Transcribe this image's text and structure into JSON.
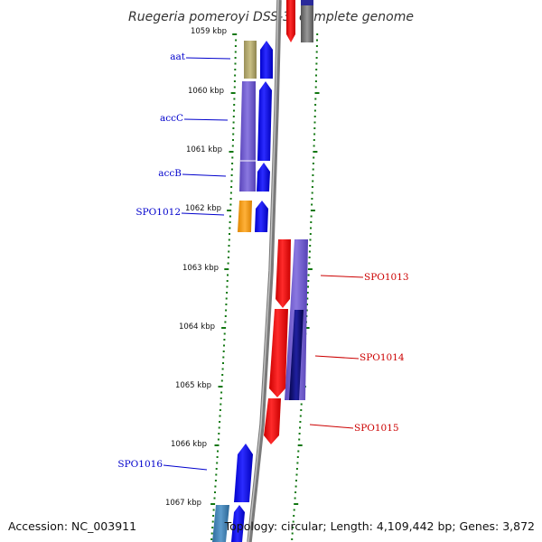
{
  "title": "Ruegeria pomeroyi DSS-3, complete genome",
  "accession": "Accession: NC_003911",
  "topology_text": "Topology: circular; Length: 4,109,442 bp; Genes: 3,872",
  "kbp_labels": [
    "1059 kbp",
    "1060 kbp",
    "1061 kbp",
    "1062 kbp",
    "1063 kbp",
    "1064 kbp",
    "1065 kbp",
    "1066 kbp",
    "1067 kbp"
  ],
  "left_genes": [
    {
      "name": "aat",
      "color": "#b5ab6e"
    },
    {
      "name": "accC",
      "color": "#6a55cc"
    },
    {
      "name": "accB",
      "color": "#6a55cc"
    },
    {
      "name": "SPO1012",
      "color": "#f59b0c"
    },
    {
      "name": "SPO1016",
      "color": "#3b7fb4"
    }
  ],
  "right_genes": [
    {
      "name": "SPO1013",
      "color": "#6a55cc"
    },
    {
      "name": "SPO1014",
      "color": "#0b0b7a"
    },
    {
      "name": "SPO1015",
      "color": "#ff0000"
    }
  ],
  "colors": {
    "forward_cds": "#0000ee",
    "reverse_cds": "#ee0000",
    "backbone": "#888888",
    "tick": "#117711",
    "left_label": "#0000cc",
    "right_label": "#cc0000"
  }
}
